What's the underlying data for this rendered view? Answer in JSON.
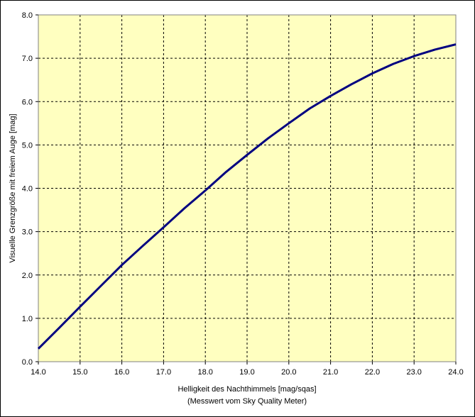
{
  "chart_data": {
    "type": "line",
    "title": "",
    "xlabel": "Helligkeit des Nachthimmels [mag/sqas]",
    "xlabel_sub": "(Messwert vom Sky Quality Meter)",
    "ylabel": "Visuelle Grenzgröße mit freiem Auge [mag]",
    "xlim": [
      14.0,
      24.0
    ],
    "ylim": [
      0.0,
      8.0
    ],
    "x_ticks": [
      "14.0",
      "15.0",
      "16.0",
      "17.0",
      "18.0",
      "19.0",
      "20.0",
      "21.0",
      "22.0",
      "23.0",
      "24.0"
    ],
    "y_ticks": [
      "0.0",
      "1.0",
      "2.0",
      "3.0",
      "4.0",
      "5.0",
      "6.0",
      "7.0",
      "8.0"
    ],
    "grid": true,
    "legend": "none",
    "colors": {
      "plot_bg": "#ffffc0",
      "line": "#000080",
      "grid": "#000000"
    },
    "series": [
      {
        "x": [
          14.0,
          14.5,
          15.0,
          15.5,
          16.0,
          16.5,
          17.0,
          17.5,
          18.0,
          18.5,
          19.0,
          19.5,
          20.0,
          20.5,
          21.0,
          21.5,
          22.0,
          22.5,
          23.0,
          23.5,
          24.0
        ],
        "y": [
          0.3,
          0.78,
          1.27,
          1.75,
          2.23,
          2.67,
          3.1,
          3.54,
          3.95,
          4.38,
          4.77,
          5.15,
          5.5,
          5.84,
          6.13,
          6.4,
          6.65,
          6.87,
          7.05,
          7.2,
          7.32
        ]
      }
    ]
  }
}
